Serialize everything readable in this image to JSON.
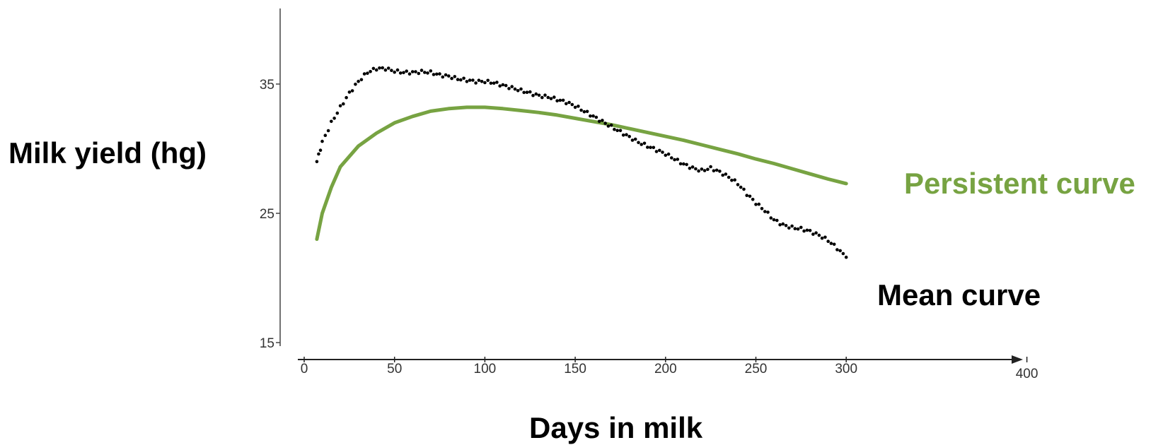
{
  "chart_data": {
    "type": "scatter",
    "xlabel": "Days in milk",
    "ylabel": "Milk yield (hg)",
    "x_ticks": [
      "0",
      "50",
      "100",
      "150",
      "200",
      "250",
      "300",
      "400"
    ],
    "y_ticks": [
      "15",
      "25",
      "35"
    ],
    "xlim": [
      0,
      400
    ],
    "ylim": [
      15,
      35
    ],
    "grid": false,
    "series": [
      {
        "name": "Persistent curve",
        "kind": "line",
        "color": "#77a342",
        "points": [
          [
            7,
            23
          ],
          [
            10,
            25
          ],
          [
            15,
            27
          ],
          [
            20,
            28.6
          ],
          [
            30,
            30.2
          ],
          [
            40,
            31.2
          ],
          [
            50,
            32
          ],
          [
            60,
            32.5
          ],
          [
            70,
            32.9
          ],
          [
            80,
            33.1
          ],
          [
            90,
            33.2
          ],
          [
            100,
            33.2
          ],
          [
            110,
            33.1
          ],
          [
            120,
            32.95
          ],
          [
            130,
            32.8
          ],
          [
            140,
            32.6
          ],
          [
            150,
            32.35
          ],
          [
            160,
            32.1
          ],
          [
            170,
            31.85
          ],
          [
            180,
            31.55
          ],
          [
            190,
            31.25
          ],
          [
            200,
            30.95
          ],
          [
            210,
            30.65
          ],
          [
            220,
            30.3
          ],
          [
            230,
            29.95
          ],
          [
            240,
            29.6
          ],
          [
            250,
            29.2
          ],
          [
            260,
            28.85
          ],
          [
            270,
            28.45
          ],
          [
            280,
            28.05
          ],
          [
            290,
            27.65
          ],
          [
            300,
            27.3
          ]
        ]
      },
      {
        "name": "Mean curve",
        "kind": "scatter",
        "color": "#000000",
        "points": [
          [
            7,
            29
          ],
          [
            10,
            30.5
          ],
          [
            15,
            32
          ],
          [
            20,
            33.2
          ],
          [
            25,
            34.3
          ],
          [
            30,
            35.2
          ],
          [
            35,
            35.9
          ],
          [
            40,
            36.2
          ],
          [
            45,
            36.2
          ],
          [
            50,
            36.0
          ],
          [
            55,
            35.9
          ],
          [
            60,
            35.9
          ],
          [
            65,
            35.95
          ],
          [
            70,
            35.9
          ],
          [
            75,
            35.7
          ],
          [
            80,
            35.6
          ],
          [
            85,
            35.4
          ],
          [
            90,
            35.3
          ],
          [
            95,
            35.2
          ],
          [
            100,
            35.2
          ],
          [
            105,
            35.1
          ],
          [
            110,
            34.9
          ],
          [
            115,
            34.7
          ],
          [
            120,
            34.5
          ],
          [
            125,
            34.3
          ],
          [
            130,
            34.1
          ],
          [
            135,
            34.0
          ],
          [
            140,
            33.8
          ],
          [
            145,
            33.6
          ],
          [
            150,
            33.3
          ],
          [
            155,
            32.9
          ],
          [
            160,
            32.5
          ],
          [
            165,
            32.1
          ],
          [
            170,
            31.7
          ],
          [
            175,
            31.3
          ],
          [
            180,
            30.9
          ],
          [
            185,
            30.5
          ],
          [
            190,
            30.2
          ],
          [
            195,
            29.9
          ],
          [
            200,
            29.6
          ],
          [
            205,
            29.2
          ],
          [
            210,
            28.8
          ],
          [
            215,
            28.5
          ],
          [
            220,
            28.3
          ],
          [
            225,
            28.5
          ],
          [
            230,
            28.2
          ],
          [
            235,
            27.8
          ],
          [
            240,
            27.3
          ],
          [
            245,
            26.5
          ],
          [
            250,
            25.8
          ],
          [
            255,
            25.2
          ],
          [
            260,
            24.5
          ],
          [
            265,
            24.1
          ],
          [
            270,
            23.9
          ],
          [
            275,
            23.8
          ],
          [
            280,
            23.6
          ],
          [
            285,
            23.3
          ],
          [
            290,
            22.9
          ],
          [
            295,
            22.3
          ],
          [
            300,
            21.6
          ]
        ]
      }
    ]
  }
}
